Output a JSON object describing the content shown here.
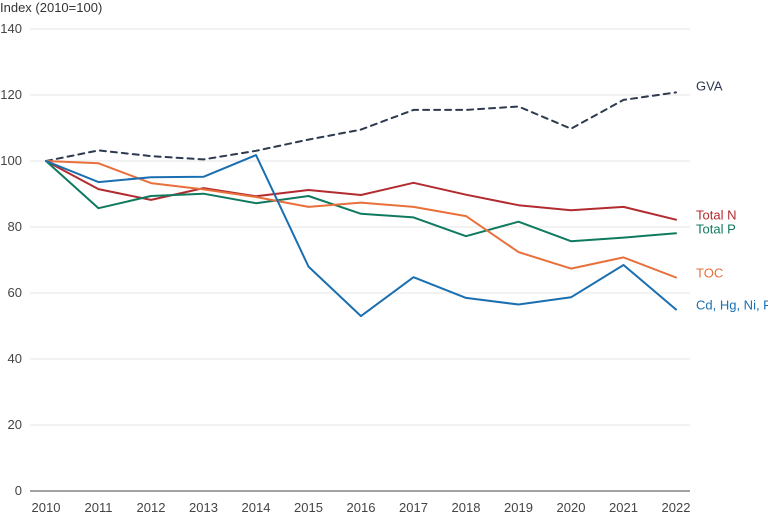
{
  "chart_data": {
    "type": "line",
    "title": "",
    "ylabel": "Index (2010=100)",
    "xlabel": "",
    "x": [
      2010,
      2011,
      2012,
      2013,
      2014,
      2015,
      2016,
      2017,
      2018,
      2019,
      2020,
      2021,
      2022
    ],
    "ylim": [
      0,
      140
    ],
    "yticks": [
      0,
      20,
      40,
      60,
      80,
      100,
      120,
      140
    ],
    "grid": "horizontal",
    "legend": "inline labels at line ends (right)",
    "series": [
      {
        "name": "GVA",
        "color": "#2d3a4f",
        "dashed": true,
        "values": [
          100,
          103.2,
          101.5,
          100.5,
          103.1,
          106.5,
          109.5,
          115.5,
          115.5,
          116.5,
          109.8,
          118.5,
          120.8
        ]
      },
      {
        "name": "Total N",
        "color": "#b22b2f",
        "dashed": false,
        "values": [
          100,
          91.5,
          88.2,
          91.8,
          89.3,
          91.2,
          89.7,
          93.4,
          89.8,
          86.6,
          85.1,
          86.1,
          82.2
        ]
      },
      {
        "name": "Total P",
        "color": "#0f7a5f",
        "dashed": false,
        "values": [
          100,
          85.7,
          89.4,
          90.1,
          87.2,
          89.4,
          84.0,
          82.9,
          77.2,
          81.6,
          75.7,
          76.8,
          78.1
        ]
      },
      {
        "name": "TOC",
        "color": "#e8703a",
        "dashed": false,
        "values": [
          100,
          99.3,
          93.3,
          91.4,
          89.1,
          86.1,
          87.4,
          86.1,
          83.3,
          72.4,
          67.4,
          70.8,
          64.7
        ]
      },
      {
        "name": "Cd, Hg, Ni, Pb",
        "color": "#1a6fb0",
        "dashed": false,
        "values": [
          100,
          93.6,
          95.1,
          95.2,
          101.8,
          68.0,
          53.0,
          64.8,
          58.5,
          56.5,
          58.7,
          68.5,
          55.0
        ]
      }
    ]
  }
}
